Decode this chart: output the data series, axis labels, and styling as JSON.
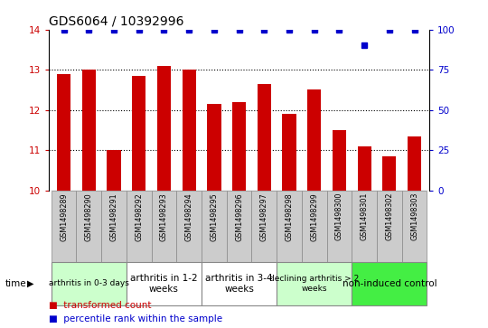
{
  "title": "GDS6064 / 10392996",
  "samples": [
    "GSM1498289",
    "GSM1498290",
    "GSM1498291",
    "GSM1498292",
    "GSM1498293",
    "GSM1498294",
    "GSM1498295",
    "GSM1498296",
    "GSM1498297",
    "GSM1498298",
    "GSM1498299",
    "GSM1498300",
    "GSM1498301",
    "GSM1498302",
    "GSM1498303"
  ],
  "bar_values": [
    12.9,
    13.0,
    11.0,
    12.85,
    13.1,
    13.0,
    12.15,
    12.2,
    12.65,
    11.9,
    12.5,
    11.5,
    11.1,
    10.85,
    11.35
  ],
  "percentile_values": [
    100,
    100,
    100,
    100,
    100,
    100,
    100,
    100,
    100,
    100,
    100,
    100,
    90,
    100,
    100
  ],
  "bar_color": "#cc0000",
  "percentile_color": "#0000cc",
  "ylim_left": [
    10,
    14
  ],
  "ylim_right": [
    0,
    100
  ],
  "yticks_left": [
    10,
    11,
    12,
    13,
    14
  ],
  "yticks_right": [
    0,
    25,
    50,
    75,
    100
  ],
  "groups": [
    {
      "label": "arthritis in 0-3 days",
      "start": 0,
      "end": 3,
      "color": "#ccffcc",
      "fontsize": 6.5,
      "small": true
    },
    {
      "label": "arthritis in 1-2\nweeks",
      "start": 3,
      "end": 6,
      "color": "#ffffff",
      "fontsize": 7.5,
      "small": false
    },
    {
      "label": "arthritis in 3-4\nweeks",
      "start": 6,
      "end": 9,
      "color": "#ffffff",
      "fontsize": 7.5,
      "small": false
    },
    {
      "label": "declining arthritis > 2\nweeks",
      "start": 9,
      "end": 12,
      "color": "#ccffcc",
      "fontsize": 6.5,
      "small": true
    },
    {
      "label": "non-induced control",
      "start": 12,
      "end": 15,
      "color": "#44ee44",
      "fontsize": 7.5,
      "small": false
    }
  ],
  "legend_red_label": "transformed count",
  "legend_blue_label": "percentile rank within the sample",
  "tick_color_left": "#cc0000",
  "tick_color_right": "#0000cc",
  "bar_width": 0.55,
  "sample_box_color": "#cccccc",
  "sample_box_edge": "#888888",
  "title_fontsize": 10,
  "time_label": "time"
}
